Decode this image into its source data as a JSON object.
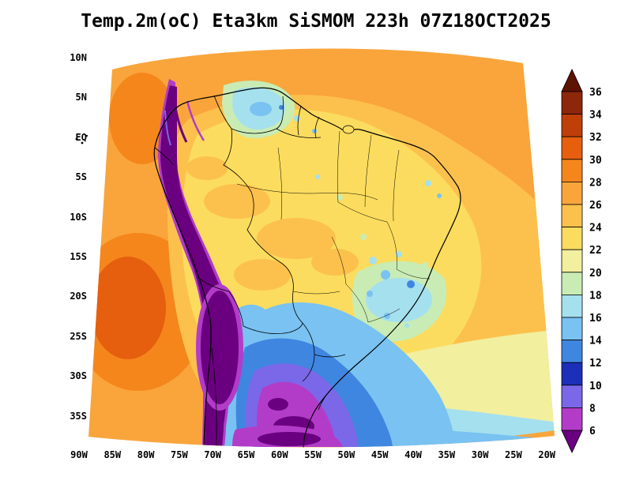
{
  "title": "Temp.2m(oC) Eta3km SiSMOM 223h 07Z18OCT2025",
  "y_axis": {
    "labels": [
      "10N",
      "5N",
      "EQ",
      "5S",
      "10S",
      "15S",
      "20S",
      "25S",
      "30S",
      "35S"
    ]
  },
  "x_axis": {
    "labels": [
      "90W",
      "85W",
      "80W",
      "75W",
      "70W",
      "65W",
      "60W",
      "55W",
      "50W",
      "45W",
      "40W",
      "35W",
      "30W",
      "25W",
      "20W"
    ]
  },
  "colorbar": {
    "tick_labels": [
      "36",
      "34",
      "32",
      "30",
      "28",
      "26",
      "24",
      "22",
      "20",
      "18",
      "16",
      "14",
      "12",
      "10",
      "8",
      "6"
    ],
    "segment_colors": [
      "#8e2609",
      "#bf3f08",
      "#e55f0e",
      "#f5861c",
      "#f9a53c",
      "#fcc14c",
      "#fbdc5e",
      "#f2ef9e",
      "#c9ecb4",
      "#a5e0ee",
      "#79c2f2",
      "#3f86e0",
      "#1c2fb8",
      "#7a68e8",
      "#b23cc8"
    ],
    "over_color": "#5e1200",
    "under_color": "#6a0080"
  },
  "chart_data": {
    "type": "heatmap",
    "title": "Temp.2m(oC) Eta3km SiSMOM 223h 07Z18OCT2025",
    "variable": "Temp.2m",
    "units": "oC",
    "model": "Eta3km",
    "system": "SiSMOM",
    "forecast_hour": "223h",
    "valid_time": "07Z18OCT2025",
    "x_tick_labels": [
      "90W",
      "85W",
      "80W",
      "75W",
      "70W",
      "65W",
      "60W",
      "55W",
      "50W",
      "45W",
      "40W",
      "35W",
      "30W",
      "25W",
      "20W"
    ],
    "y_tick_labels": [
      "10N",
      "5N",
      "EQ",
      "5S",
      "10S",
      "15S",
      "20S",
      "25S",
      "30S",
      "35S"
    ],
    "levels": [
      6,
      8,
      10,
      12,
      14,
      16,
      18,
      20,
      22,
      24,
      26,
      28,
      30,
      32,
      34,
      36
    ],
    "legend_position": "right",
    "palette": [
      {
        "level": ">36",
        "color": "#5e1200"
      },
      {
        "level": "34-36",
        "color": "#8e2609"
      },
      {
        "level": "32-34",
        "color": "#bf3f08"
      },
      {
        "level": "30-32",
        "color": "#e55f0e"
      },
      {
        "level": "28-30",
        "color": "#f5861c"
      },
      {
        "level": "26-28",
        "color": "#f9a53c"
      },
      {
        "level": "24-26",
        "color": "#fcc14c"
      },
      {
        "level": "22-24",
        "color": "#fbdc5e"
      },
      {
        "level": "20-22",
        "color": "#f2ef9e"
      },
      {
        "level": "18-20",
        "color": "#c9ecb4"
      },
      {
        "level": "16-18",
        "color": "#a5e0ee"
      },
      {
        "level": "14-16",
        "color": "#79c2f2"
      },
      {
        "level": "12-14",
        "color": "#3f86e0"
      },
      {
        "level": "10-12",
        "color": "#1c2fb8"
      },
      {
        "level": "8-10",
        "color": "#7a68e8"
      },
      {
        "level": "6-8",
        "color": "#b23cc8"
      },
      {
        "level": "<6",
        "color": "#6a0080"
      }
    ],
    "field_summary": [
      {
        "region": "Caribbean and tropical Atlantic",
        "approx_temp_C": "26-28"
      },
      {
        "region": "Pacific off Colombia/Ecuador",
        "approx_temp_C": "26-30"
      },
      {
        "region": "subtropical SE Pacific warm patch",
        "approx_temp_C": "28-32"
      },
      {
        "region": "Amazon basin interior",
        "approx_temp_C": "22-26"
      },
      {
        "region": "northern Venezuela/Guyana cool patch",
        "approx_temp_C": "14-20"
      },
      {
        "region": "Andes cordillera and Altiplano",
        "approx_temp_C": "<8"
      },
      {
        "region": "southeast Brazil highlands",
        "approx_temp_C": "14-20"
      },
      {
        "region": "southern cone cold air (Paraguay/Argentina/Uruguay)",
        "approx_temp_C": "6-16"
      },
      {
        "region": "southwest Atlantic",
        "approx_temp_C": "14-24"
      }
    ]
  }
}
